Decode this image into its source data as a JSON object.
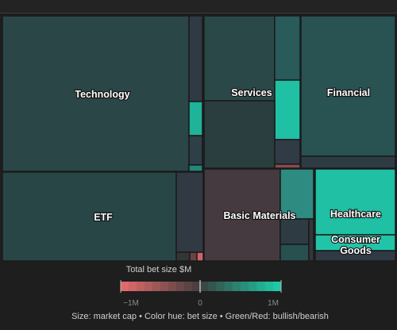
{
  "chart_data": {
    "type": "treemap",
    "sectors": [
      {
        "name": "Technology",
        "label": "Technology"
      },
      {
        "name": "Services",
        "label": "Services"
      },
      {
        "name": "Financial",
        "label": "Financial"
      },
      {
        "name": "ETF",
        "label": "ETF"
      },
      {
        "name": "Basic Materials",
        "label": "Basic Materials"
      },
      {
        "name": "Healthcare",
        "label": "Healthcare"
      },
      {
        "name": "Consumer Goods",
        "label": "Consumer\nGoods"
      }
    ],
    "legend": {
      "title": "Total bet size $M",
      "ticks": [
        "−1M",
        "0",
        "1M"
      ],
      "negative_color": "#e06a6a",
      "neutral_color": "#3a3a3a",
      "positive_color": "#1ec8a5"
    },
    "caption": "Size: market cap • Color hue: bet size • Green/Red: bullish/bearish"
  },
  "colors": {
    "background": "#1e1e1e",
    "tile_border": "#1a1a1a",
    "label": "#ffffff"
  }
}
